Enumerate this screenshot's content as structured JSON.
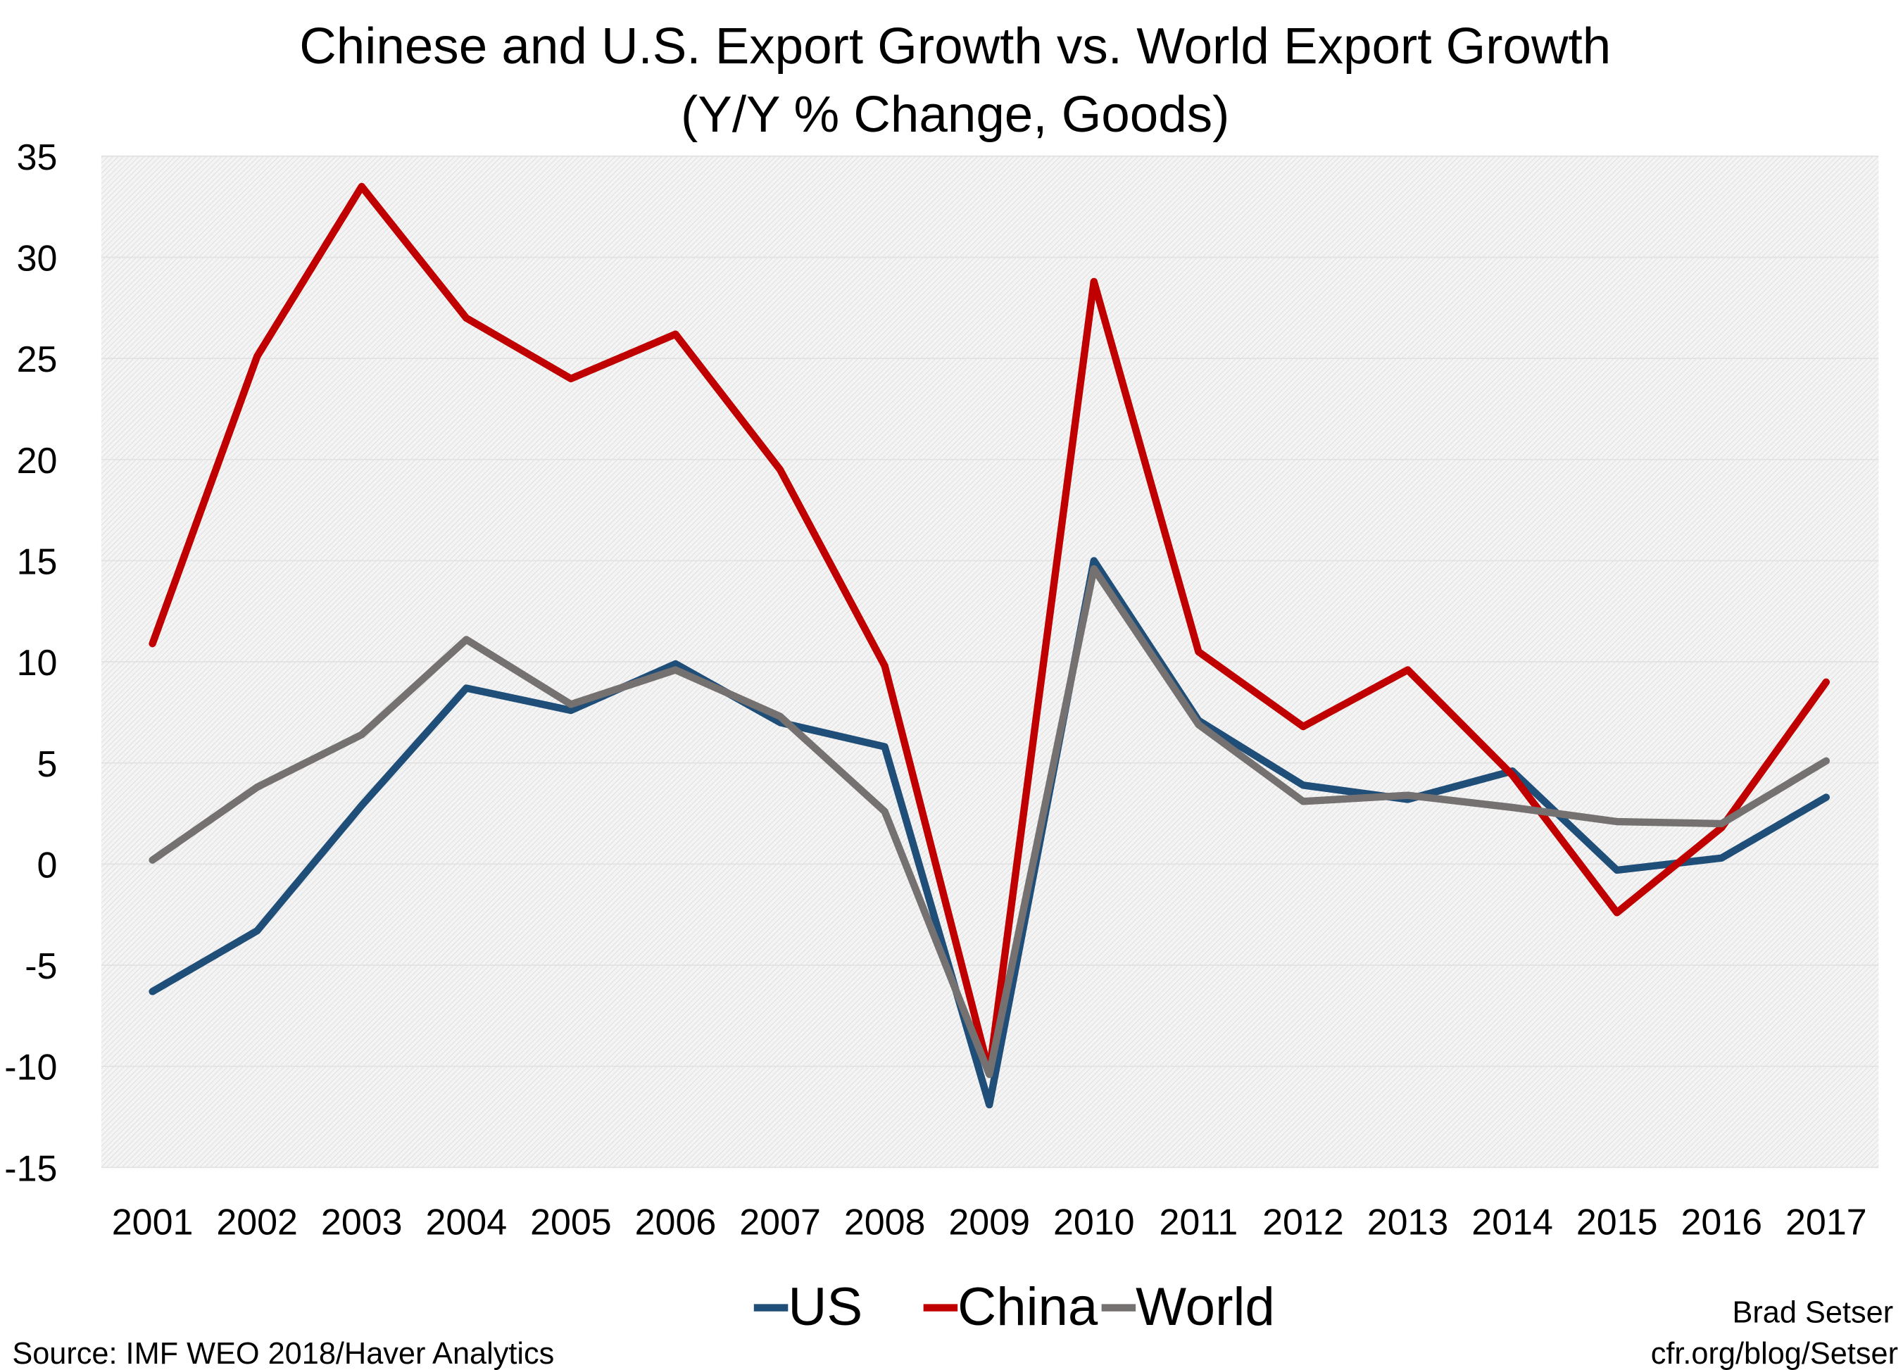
{
  "chart_data": {
    "type": "line",
    "title": "Chinese and U.S. Export Growth vs. World Export Growth",
    "subtitle": "(Y/Y % Change, Goods)",
    "xlabel": "",
    "ylabel": "",
    "x": [
      "2001",
      "2002",
      "2003",
      "2004",
      "2005",
      "2006",
      "2007",
      "2008",
      "2009",
      "2010",
      "2011",
      "2012",
      "2013",
      "2014",
      "2015",
      "2016",
      "2017"
    ],
    "ylim": [
      -15,
      35
    ],
    "yticks": [
      35,
      30,
      25,
      20,
      15,
      10,
      5,
      0,
      -5,
      -10,
      -15
    ],
    "grid": true,
    "legend": "bottom",
    "series": [
      {
        "name": "US",
        "color": "#1f4e79",
        "values": [
          -6.3,
          -3.3,
          2.9,
          8.7,
          7.6,
          9.9,
          7.0,
          5.8,
          -11.9,
          15.0,
          7.1,
          3.9,
          3.2,
          4.6,
          -0.3,
          0.3,
          3.3
        ]
      },
      {
        "name": "China",
        "color": "#c00000",
        "values": [
          10.9,
          25.1,
          33.5,
          27.0,
          24.0,
          26.2,
          19.5,
          9.8,
          -10.3,
          28.8,
          10.5,
          6.8,
          9.6,
          4.4,
          -2.4,
          1.8,
          9.0
        ]
      },
      {
        "name": "World",
        "color": "#767171",
        "values": [
          0.2,
          3.8,
          6.4,
          11.1,
          7.9,
          9.6,
          7.3,
          2.6,
          -10.4,
          14.6,
          6.9,
          3.1,
          3.4,
          2.8,
          2.1,
          2.0,
          5.1
        ]
      }
    ]
  },
  "source": "Source: IMF WEO 2018/Haver Analytics",
  "author": "Brad Setser",
  "website": "cfr.org/blog/Setser"
}
